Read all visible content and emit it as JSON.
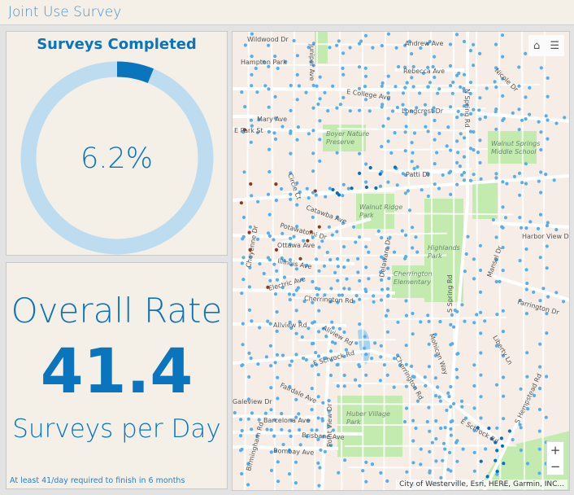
{
  "header": {
    "title": "Joint Use Survey"
  },
  "gauge": {
    "title": "Surveys Completed",
    "value_label": "6.2%",
    "fraction": 0.062,
    "colors": {
      "fill": "#0a74bc",
      "track": "#bedcef"
    }
  },
  "rate": {
    "title": "Overall Rate",
    "value": "41.4",
    "units": "Surveys per Day",
    "note": "At least 41/day required to finish in 6 months"
  },
  "map": {
    "attribution": "City of Westerville, Esri, HERE, Garmin, INC...",
    "tools": {
      "home_icon": "home-icon",
      "legend_icon": "list-icon",
      "zoom_in": "+",
      "zoom_out": "−"
    },
    "street_labels": [
      "Wildwood Dr",
      "Hampton Park",
      "Juniper Ave",
      "E College Ave",
      "Mary Ave",
      "E Park St",
      "Andrew Ave",
      "Rebecca Ave",
      "N Spring Rd",
      "Longcrest Dr",
      "Nicole Dr",
      "Patti Dr",
      "Catawba Ave",
      "Potawatomi Dr",
      "Ottawa Ave",
      "Illinois Ave",
      "Electric Ave",
      "Cheyenne Dr",
      "Cherrington Rd",
      "Delaware Dr",
      "Harbor View Dr",
      "Mansel Dr",
      "Farrington Dr",
      "S Spring Rd",
      "Liberty Ln",
      "Allview Rd",
      "Allview Rd",
      "E Schrock Rd",
      "Fairdale Ave",
      "Galeview Dr",
      "Barcelona Ave",
      "Brisbane Ave",
      "Bombay Ave",
      "Birmingham Rd",
      "Point View Dr",
      "Cherrington Rd",
      "Mohican Way",
      "E Schrock Rd",
      "S Hempstead Rd",
      "Circle Ct"
    ],
    "park_labels": [
      "Boyer Nature Preserve",
      "Walnut Springs Middle School",
      "Walnut Ridge Park",
      "Highlands Park",
      "Cherrington Elementary",
      "Huber Village Park"
    ],
    "colors": {
      "survey_pending": "#5aaee8",
      "survey_completed": "#0a6cbc",
      "survey_other": "#8a3a1e",
      "park": "#c3ebb0",
      "water": "#a8d3f0",
      "road": "#ffffff"
    }
  }
}
